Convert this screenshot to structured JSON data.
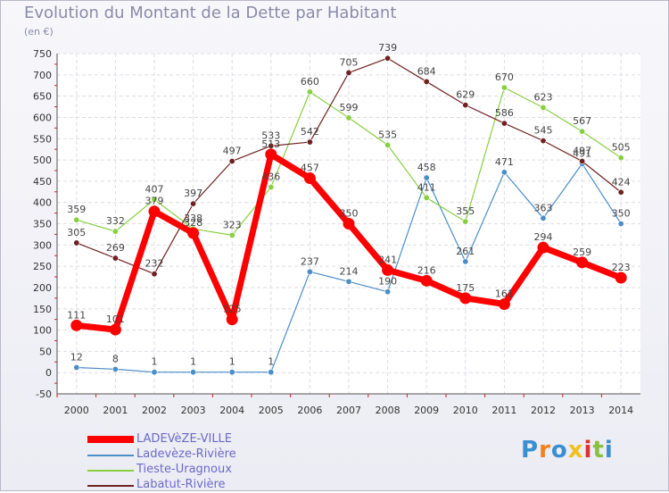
{
  "chart_data": {
    "type": "line",
    "title": "Evolution du Montant de la Dette par Habitant",
    "unit": "(en €)",
    "ylim": [
      -50,
      750
    ],
    "yticks": [
      "-50",
      "0",
      "50",
      "100",
      "150",
      "200",
      "250",
      "300",
      "350",
      "400",
      "450",
      "500",
      "550",
      "600",
      "650",
      "700",
      "750"
    ],
    "grid": true,
    "x": [
      "2000",
      "2001",
      "2002",
      "2003",
      "2004",
      "2005",
      "2006",
      "2007",
      "2008",
      "2009",
      "2010",
      "2011",
      "2012",
      "2013",
      "2014"
    ],
    "series": [
      {
        "name": "LADEVèZE-VILLE",
        "color": "#ff0000",
        "values": [
          111,
          101,
          379,
          328,
          125,
          513,
          457,
          350,
          241,
          216,
          175,
          161,
          294,
          259,
          223
        ],
        "labels": [
          "111",
          "101",
          "379",
          "328",
          "125",
          "513",
          "457",
          "350",
          "241",
          "216",
          "175",
          "161",
          "294",
          "259",
          "223"
        ]
      },
      {
        "name": "Ladevèze-Rivière",
        "color": "#4a8ec8",
        "values": [
          12,
          8,
          1,
          1,
          1,
          1,
          237,
          214,
          190,
          458,
          261,
          471,
          363,
          491,
          350
        ],
        "labels": [
          "12",
          "8",
          "1",
          "1",
          "1",
          "1",
          "237",
          "214",
          "190",
          "458",
          "261",
          "471",
          "363",
          "491",
          "350"
        ]
      },
      {
        "name": "Tieste-Uragnoux",
        "color": "#88d040",
        "values": [
          359,
          332,
          407,
          338,
          323,
          436,
          660,
          599,
          535,
          411,
          355,
          670,
          623,
          567,
          505
        ],
        "labels": [
          "359",
          "332",
          "407",
          "338",
          "323",
          "436",
          "660",
          "599",
          "535",
          "411",
          "355",
          "670",
          "623",
          "567",
          "505"
        ]
      },
      {
        "name": "Labatut-Rivière",
        "color": "#702020",
        "values": [
          305,
          269,
          232,
          397,
          497,
          533,
          542,
          705,
          739,
          684,
          629,
          586,
          545,
          497,
          424
        ],
        "labels": [
          "305",
          "269",
          "232",
          "397",
          "497",
          "533",
          "542",
          "705",
          "739",
          "684",
          "629",
          "586",
          "545",
          "497",
          "424"
        ]
      }
    ]
  },
  "legend": {
    "items": [
      "LADEVèZE-VILLE",
      "Ladevèze-Rivière",
      "Tieste-Uragnoux",
      "Labatut-Rivière"
    ]
  },
  "logo": {
    "text": "Proxiti"
  }
}
